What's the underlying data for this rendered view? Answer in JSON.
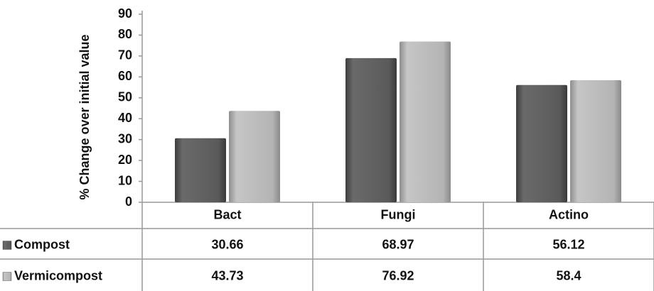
{
  "chart_data": {
    "type": "bar",
    "ylabel": "% Change over initial value",
    "categories": [
      "Bact",
      "Fungi",
      "Actino"
    ],
    "series": [
      {
        "name": "Compost",
        "color": "#5a5a5a",
        "values": [
          30.66,
          68.97,
          56.12
        ]
      },
      {
        "name": "Vermicompost",
        "color": "#b4b4b4",
        "values": [
          43.73,
          76.92,
          58.4
        ]
      }
    ],
    "ylim": [
      0,
      90
    ],
    "yticks": [
      0,
      10,
      20,
      30,
      40,
      50,
      60,
      70,
      80,
      90
    ],
    "grid": false
  }
}
